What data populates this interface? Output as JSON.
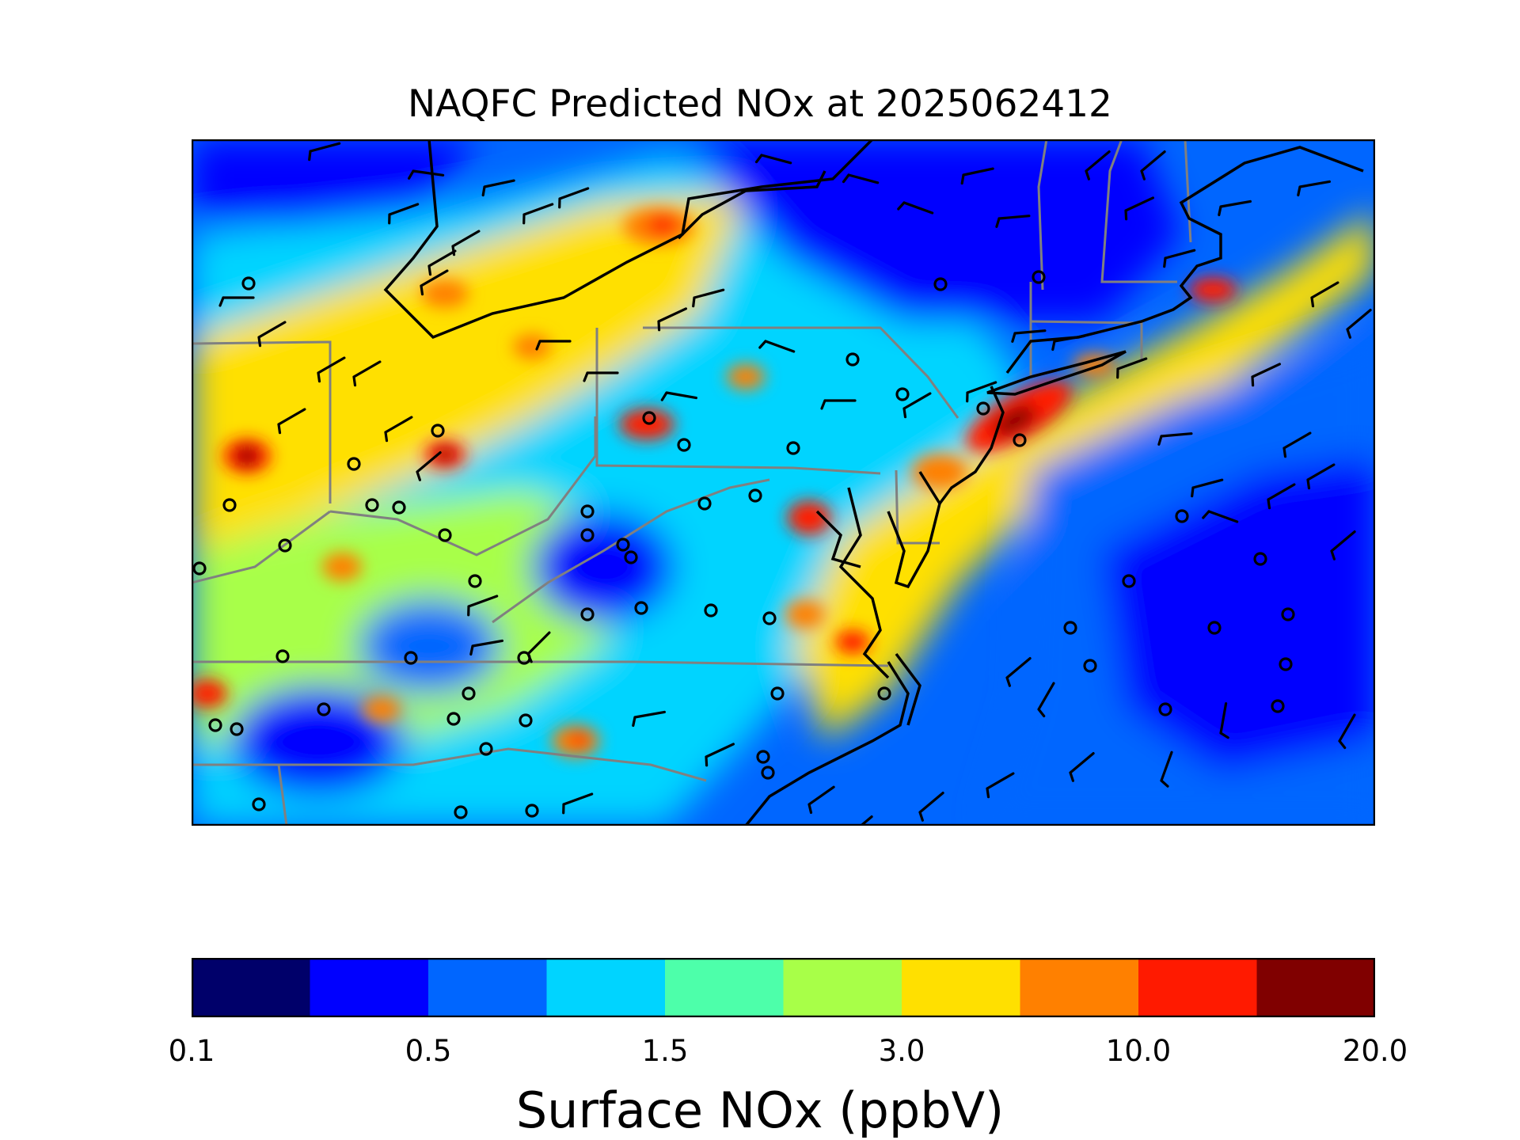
{
  "title": "NAQFC Predicted NOx at 2025062412",
  "colorbar": {
    "label": "Surface NOx (ppbV)",
    "tick_labels": [
      "0.1",
      "0.5",
      "1.5",
      "3.0",
      "10.0",
      "20.0"
    ],
    "colors": [
      "#00006a",
      "#0000ff",
      "#0066ff",
      "#00d4ff",
      "#4dffaa",
      "#a8ff48",
      "#ffe000",
      "#ff8000",
      "#ff1a00",
      "#800000"
    ]
  },
  "chart_data": {
    "type": "heatmap",
    "title": "NAQFC Predicted NOx at 2025062412",
    "colorbar_label": "Surface NOx (ppbV)",
    "colorbar_ticks": [
      "0.1",
      "0.5",
      "1.5",
      "3.0",
      "10.0",
      "20.0"
    ],
    "levels": 10,
    "overlays": [
      "wind barbs",
      "monitor site circles",
      "coastlines",
      "state boundaries"
    ]
  }
}
